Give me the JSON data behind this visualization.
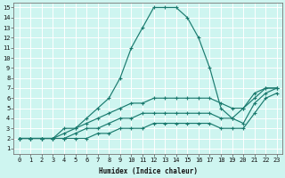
{
  "xlabel": "Humidex (Indice chaleur)",
  "bg_color": "#cef5f0",
  "grid_color": "#ffffff",
  "line_color": "#1a7a6e",
  "xlim": [
    -0.5,
    23.5
  ],
  "ylim": [
    0.5,
    15.5
  ],
  "xticks": [
    0,
    1,
    2,
    3,
    4,
    5,
    6,
    7,
    8,
    9,
    10,
    11,
    12,
    13,
    14,
    15,
    16,
    17,
    18,
    19,
    20,
    21,
    22,
    23
  ],
  "yticks": [
    1,
    2,
    3,
    4,
    5,
    6,
    7,
    8,
    9,
    10,
    11,
    12,
    13,
    14,
    15
  ],
  "series": [
    {
      "x": [
        0,
        1,
        2,
        3,
        4,
        5,
        6,
        7,
        8,
        9,
        10,
        11,
        12,
        13,
        14,
        15,
        16,
        17,
        18,
        19,
        20,
        21,
        22,
        23
      ],
      "y": [
        2,
        2,
        2,
        2,
        3,
        3,
        4,
        5,
        6,
        8,
        11,
        13,
        15,
        15,
        15,
        14,
        12,
        9,
        5,
        4,
        5,
        6,
        7,
        7
      ]
    },
    {
      "x": [
        0,
        1,
        2,
        3,
        4,
        5,
        6,
        7,
        8,
        9,
        10,
        11,
        12,
        13,
        14,
        15,
        16,
        17,
        18,
        19,
        20,
        21,
        22,
        23
      ],
      "y": [
        2,
        2,
        2,
        2,
        2.5,
        3,
        3.5,
        4,
        4.5,
        5,
        5.5,
        5.5,
        6,
        6,
        6,
        6,
        6,
        6,
        5.5,
        5,
        5,
        6.5,
        7,
        7
      ]
    },
    {
      "x": [
        0,
        1,
        2,
        3,
        4,
        5,
        6,
        7,
        8,
        9,
        10,
        11,
        12,
        13,
        14,
        15,
        16,
        17,
        18,
        19,
        20,
        21,
        22,
        23
      ],
      "y": [
        2,
        2,
        2,
        2,
        2,
        2.5,
        3,
        3,
        3.5,
        4,
        4,
        4.5,
        4.5,
        4.5,
        4.5,
        4.5,
        4.5,
        4.5,
        4,
        4,
        3.5,
        5.5,
        6.5,
        7
      ]
    },
    {
      "x": [
        0,
        1,
        2,
        3,
        4,
        5,
        6,
        7,
        8,
        9,
        10,
        11,
        12,
        13,
        14,
        15,
        16,
        17,
        18,
        19,
        20,
        21,
        22,
        23
      ],
      "y": [
        2,
        2,
        2,
        2,
        2,
        2,
        2,
        2.5,
        2.5,
        3,
        3,
        3,
        3.5,
        3.5,
        3.5,
        3.5,
        3.5,
        3.5,
        3,
        3,
        3,
        4.5,
        6,
        6.5
      ]
    }
  ]
}
